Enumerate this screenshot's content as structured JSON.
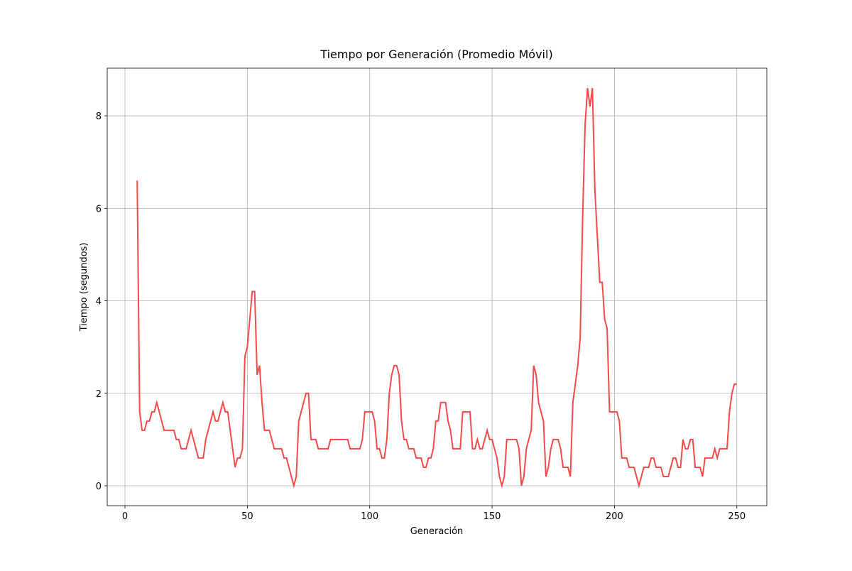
{
  "chart_data": {
    "type": "line",
    "title": "Tiempo por Generación (Promedio Móvil)",
    "x_label": "Generación",
    "y_label": "Tiempo (segundos)",
    "x": [
      5,
      6,
      7,
      8,
      9,
      10,
      11,
      12,
      13,
      14,
      15,
      16,
      17,
      18,
      19,
      20,
      21,
      22,
      23,
      24,
      25,
      26,
      27,
      28,
      29,
      30,
      31,
      32,
      33,
      34,
      35,
      36,
      37,
      38,
      39,
      40,
      41,
      42,
      43,
      44,
      45,
      46,
      47,
      48,
      49,
      50,
      51,
      52,
      53,
      54,
      55,
      56,
      57,
      58,
      59,
      60,
      61,
      62,
      63,
      64,
      65,
      66,
      67,
      68,
      69,
      70,
      71,
      72,
      73,
      74,
      75,
      76,
      77,
      78,
      79,
      80,
      81,
      82,
      83,
      84,
      85,
      86,
      87,
      88,
      89,
      90,
      91,
      92,
      93,
      94,
      95,
      96,
      97,
      98,
      99,
      100,
      101,
      102,
      103,
      104,
      105,
      106,
      107,
      108,
      109,
      110,
      111,
      112,
      113,
      114,
      115,
      116,
      117,
      118,
      119,
      120,
      121,
      122,
      123,
      124,
      125,
      126,
      127,
      128,
      129,
      130,
      131,
      132,
      133,
      134,
      135,
      136,
      137,
      138,
      139,
      140,
      141,
      142,
      143,
      144,
      145,
      146,
      147,
      148,
      149,
      150,
      151,
      152,
      153,
      154,
      155,
      156,
      157,
      158,
      159,
      160,
      161,
      162,
      163,
      164,
      165,
      166,
      167,
      168,
      169,
      170,
      171,
      172,
      173,
      174,
      175,
      176,
      177,
      178,
      179,
      180,
      181,
      182,
      183,
      184,
      185,
      186,
      187,
      188,
      189,
      190,
      191,
      192,
      193,
      194,
      195,
      196,
      197,
      198,
      199,
      200,
      201,
      202,
      203,
      204,
      205,
      206,
      207,
      208,
      209,
      210,
      211,
      212,
      213,
      214,
      215,
      216,
      217,
      218,
      219,
      220,
      221,
      222,
      223,
      224,
      225,
      226,
      227,
      228,
      229,
      230,
      231,
      232,
      233,
      234,
      235,
      236,
      237,
      238,
      239,
      240,
      241,
      242,
      243,
      244,
      245,
      246,
      247,
      248,
      249,
      250
    ],
    "series": [
      {
        "color": "#f44a4a",
        "values": [
          6.6,
          1.6,
          1.2,
          1.2,
          1.4,
          1.4,
          1.6,
          1.6,
          1.8,
          1.6,
          1.4,
          1.2,
          1.2,
          1.2,
          1.2,
          1.2,
          1.0,
          1.0,
          0.8,
          0.8,
          0.8,
          1.0,
          1.2,
          1.0,
          0.8,
          0.6,
          0.6,
          0.6,
          1.0,
          1.2,
          1.4,
          1.6,
          1.4,
          1.4,
          1.6,
          1.8,
          1.6,
          1.6,
          1.2,
          0.8,
          0.4,
          0.6,
          0.6,
          0.8,
          2.8,
          3.0,
          3.6,
          4.2,
          4.2,
          2.4,
          2.6,
          1.8,
          1.2,
          1.2,
          1.2,
          1.0,
          0.8,
          0.8,
          0.8,
          0.8,
          0.6,
          0.6,
          0.4,
          0.2,
          0.0,
          0.2,
          1.4,
          1.6,
          1.8,
          2.0,
          2.0,
          1.0,
          1.0,
          1.0,
          0.8,
          0.8,
          0.8,
          0.8,
          0.8,
          1.0,
          1.0,
          1.0,
          1.0,
          1.0,
          1.0,
          1.0,
          1.0,
          0.8,
          0.8,
          0.8,
          0.8,
          0.8,
          1.0,
          1.6,
          1.6,
          1.6,
          1.6,
          1.4,
          0.8,
          0.8,
          0.6,
          0.6,
          1.0,
          2.0,
          2.4,
          2.6,
          2.6,
          2.4,
          1.4,
          1.0,
          1.0,
          0.8,
          0.8,
          0.8,
          0.6,
          0.6,
          0.6,
          0.4,
          0.4,
          0.6,
          0.6,
          0.8,
          1.4,
          1.4,
          1.8,
          1.8,
          1.8,
          1.4,
          1.2,
          0.8,
          0.8,
          0.8,
          0.8,
          1.6,
          1.6,
          1.6,
          1.6,
          0.8,
          0.8,
          1.0,
          0.8,
          0.8,
          1.0,
          1.2,
          1.0,
          1.0,
          0.8,
          0.6,
          0.2,
          0.0,
          0.2,
          1.0,
          1.0,
          1.0,
          1.0,
          1.0,
          0.8,
          0.0,
          0.2,
          0.8,
          1.0,
          1.2,
          2.6,
          2.4,
          1.8,
          1.6,
          1.4,
          0.2,
          0.4,
          0.8,
          1.0,
          1.0,
          1.0,
          0.8,
          0.4,
          0.4,
          0.4,
          0.2,
          1.8,
          2.2,
          2.6,
          3.2,
          5.8,
          7.8,
          8.6,
          8.2,
          8.6,
          6.4,
          5.4,
          4.4,
          4.4,
          3.6,
          3.4,
          1.6,
          1.6,
          1.6,
          1.6,
          1.4,
          0.6,
          0.6,
          0.6,
          0.4,
          0.4,
          0.4,
          0.2,
          0.0,
          0.2,
          0.4,
          0.4,
          0.4,
          0.6,
          0.6,
          0.4,
          0.4,
          0.4,
          0.2,
          0.2,
          0.2,
          0.4,
          0.6,
          0.6,
          0.4,
          0.4,
          1.0,
          0.8,
          0.8,
          1.0,
          1.0,
          0.4,
          0.4,
          0.4,
          0.2,
          0.6,
          0.6,
          0.6,
          0.6,
          0.8,
          0.6,
          0.8,
          0.8,
          0.8,
          0.8,
          1.6,
          2.0,
          2.2,
          2.2
        ]
      }
    ],
    "xlim": [
      -7.25,
      262.25
    ],
    "ylim": [
      -0.43,
      9.03
    ],
    "xticks": [
      0,
      50,
      100,
      150,
      200,
      250
    ],
    "yticks": [
      0,
      2,
      4,
      6,
      8
    ],
    "grid": true
  }
}
